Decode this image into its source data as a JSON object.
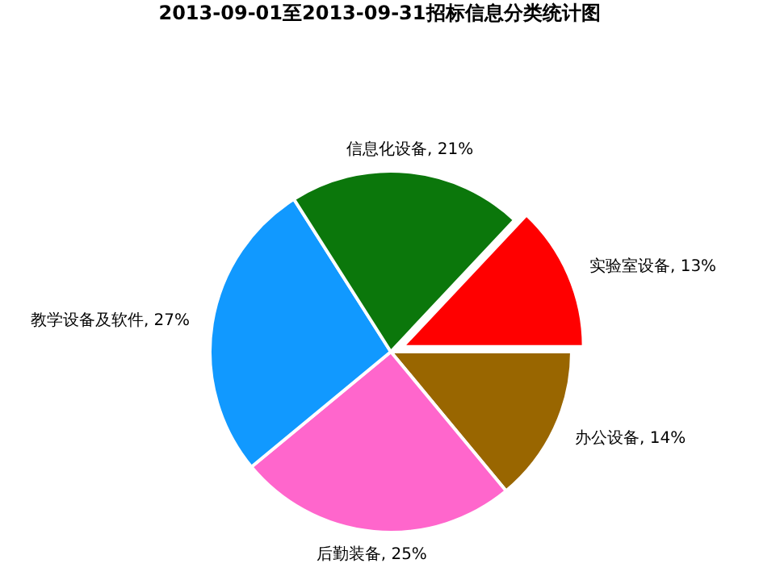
{
  "chart_data": {
    "type": "pie",
    "title": "2013-09-01至2013-09-31招标信息分类统计图",
    "categories": [
      "实验室设备",
      "办公设备",
      "后勤装备",
      "教学设备及软件",
      "信息化设备"
    ],
    "values": [
      13,
      14,
      25,
      27,
      21
    ],
    "value_labels": [
      ", 13%",
      ", 14%",
      ", 25%",
      ", 27%",
      ", 21%"
    ],
    "colors": [
      "#ff0000",
      "#996600",
      "#ff66cc",
      "#1199ff",
      "#0b770b"
    ]
  }
}
